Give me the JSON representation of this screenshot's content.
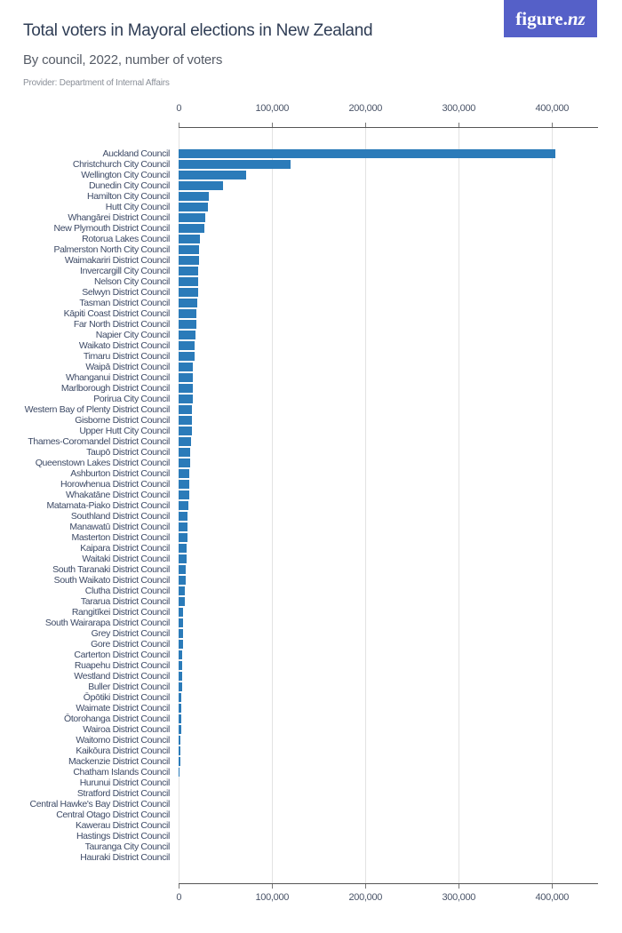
{
  "header": {
    "title": "Total voters in Mayoral elections in New Zealand",
    "subtitle": "By council, 2022, number of voters",
    "provider": "Provider: Department of Internal Affairs",
    "logo_text": "figure.",
    "logo_suffix": "nz"
  },
  "colors": {
    "bar": "#2b7bb9",
    "logo_bg": "#5560c8",
    "title": "#2f3d55"
  },
  "chart_data": {
    "type": "bar",
    "orientation": "horizontal",
    "title": "Total voters in Mayoral elections in New Zealand",
    "subtitle": "By council, 2022, number of voters",
    "xlabel": "",
    "ylabel": "",
    "xlim": [
      0,
      450000
    ],
    "x_ticks": [
      "0",
      "100,000",
      "200,000",
      "300,000",
      "400,000"
    ],
    "x_tick_values": [
      0,
      100000,
      200000,
      300000,
      400000
    ],
    "grid": true,
    "legend": "none",
    "categories": [
      "Auckland Council",
      "Christchurch City Council",
      "Wellington City Council",
      "Dunedin City Council",
      "Hamilton City Council",
      "Hutt City Council",
      "Whangārei District Council",
      "New Plymouth District Council",
      "Rotorua Lakes Council",
      "Palmerston North City Council",
      "Waimakariri District Council",
      "Invercargill City Council",
      "Nelson City Council",
      "Selwyn District Council",
      "Tasman District Council",
      "Kāpiti Coast District Council",
      "Far North District Council",
      "Napier City Council",
      "Waikato District Council",
      "Timaru District Council",
      "Waipā District Council",
      "Whanganui District Council",
      "Marlborough District Council",
      "Porirua City Council",
      "Western Bay of Plenty District Council",
      "Gisborne District Council",
      "Upper Hutt City Council",
      "Thames-Coromandel District Council",
      "Taupō District Council",
      "Queenstown Lakes District Council",
      "Ashburton District Council",
      "Horowhenua District Council",
      "Whakatāne District Council",
      "Matamata-Piako District Council",
      "Southland District Council",
      "Manawatū District Council",
      "Masterton District Council",
      "Kaipara District Council",
      "Waitaki District Council",
      "South Taranaki District Council",
      "South Waikato District Council",
      "Clutha District Council",
      "Tararua District Council",
      "Rangitīkei District Council",
      "South Wairarapa District Council",
      "Grey District Council",
      "Gore District Council",
      "Carterton District Council",
      "Ruapehu District Council",
      "Westland District Council",
      "Buller District Council",
      "Ōpōtiki District Council",
      "Waimate District Council",
      "Ōtorohanga District Council",
      "Wairoa District Council",
      "Waitomo District Council",
      "Kaikōura District Council",
      "Mackenzie District Council",
      "Chatham Islands Council",
      "Hurunui District Council",
      "Stratford District Council",
      "Central Hawke's Bay District Council",
      "Central Otago District Council",
      "Kawerau District Council",
      "Hastings District Council",
      "Tauranga City Council",
      "Hauraki District Council"
    ],
    "values": [
      404000,
      119700,
      72700,
      48000,
      32000,
      31800,
      28900,
      27300,
      23200,
      22000,
      21500,
      21000,
      20600,
      20600,
      20300,
      19300,
      19100,
      18300,
      17600,
      16900,
      15600,
      15500,
      15400,
      15300,
      14700,
      14400,
      14100,
      13100,
      12800,
      12400,
      11900,
      11900,
      11500,
      10000,
      9600,
      9600,
      9200,
      8300,
      8200,
      7300,
      7200,
      6600,
      6400,
      5100,
      4900,
      4900,
      4800,
      4200,
      4100,
      3500,
      3500,
      3200,
      2900,
      2700,
      2600,
      2300,
      1600,
      1600,
      400,
      0,
      0,
      0,
      0,
      0,
      0,
      0,
      0
    ]
  }
}
